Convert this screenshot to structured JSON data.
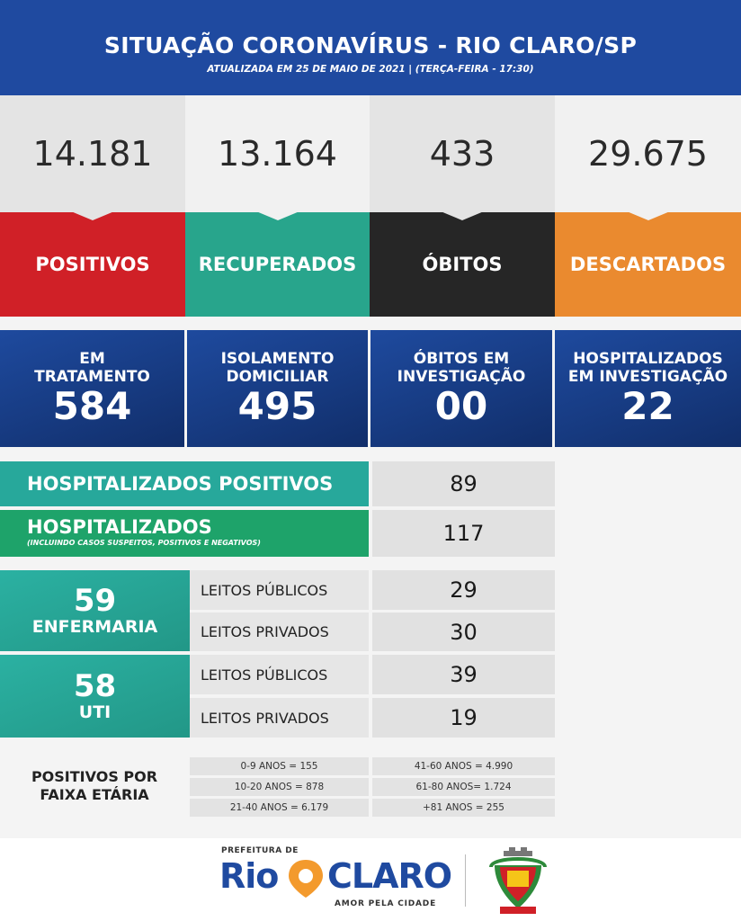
{
  "header": {
    "title": "SITUAÇÃO CORONAVÍRUS - RIO CLARO/SP",
    "subtitle": "ATUALIZADA EM 25 DE MAIO DE 2021 | (TERÇA-FEIRA - 17:30)",
    "background": "#1f4aa0"
  },
  "stats": [
    {
      "value": "14.181",
      "label": "POSITIVOS",
      "color": "#d02027"
    },
    {
      "value": "13.164",
      "label": "RECUPERADOS",
      "color": "#28a58c"
    },
    {
      "value": "433",
      "label": "ÓBITOS",
      "color": "#262626"
    },
    {
      "value": "29.675",
      "label": "DESCARTADOS",
      "color": "#ea8a2f"
    }
  ],
  "blue_boxes": [
    {
      "line1": "EM",
      "line2": "TRATAMENTO",
      "value": "584"
    },
    {
      "line1": "ISOLAMENTO",
      "line2": "DOMICILIAR",
      "value": "495"
    },
    {
      "line1": "ÓBITOS EM",
      "line2": "INVESTIGAÇÃO",
      "value": "00"
    },
    {
      "line1": "HOSPITALIZADOS",
      "line2": "EM INVESTIGAÇÃO",
      "value": "22"
    }
  ],
  "hospitalizados_positivos": {
    "label": "HOSPITALIZADOS POSITIVOS",
    "value": "89"
  },
  "hospitalizados": {
    "label": "HOSPITALIZADOS",
    "note": "(INCLUINDO CASOS SUSPEITOS, POSITIVOS E NEGATIVOS)",
    "value": "117"
  },
  "enfermaria": {
    "total": "59",
    "label": "ENFERMARIA",
    "rows": [
      {
        "label": "LEITOS PÚBLICOS",
        "value": "29"
      },
      {
        "label": "LEITOS PRIVADOS",
        "value": "30"
      }
    ]
  },
  "uti": {
    "total": "58",
    "label": "UTI",
    "rows": [
      {
        "label": "LEITOS PÚBLICOS",
        "value": "39"
      },
      {
        "label": "LEITOS PRIVADOS",
        "value": "19"
      }
    ]
  },
  "faixa_etaria": {
    "title_line1": "POSITIVOS POR",
    "title_line2": "FAIXA ETÁRIA",
    "left": [
      "0-9 ANOS = 155",
      "10-20 ANOS = 878",
      "21-40 ANOS = 6.179"
    ],
    "right": [
      "41-60 ANOS = 4.990",
      "61-80 ANOS= 1.724",
      "+81 ANOS = 255"
    ]
  },
  "footer": {
    "prefeitura": "PREFEITURA DE",
    "rio": "Rio",
    "claro": "CLARO",
    "slogan": "AMOR PELA CIDADE"
  }
}
